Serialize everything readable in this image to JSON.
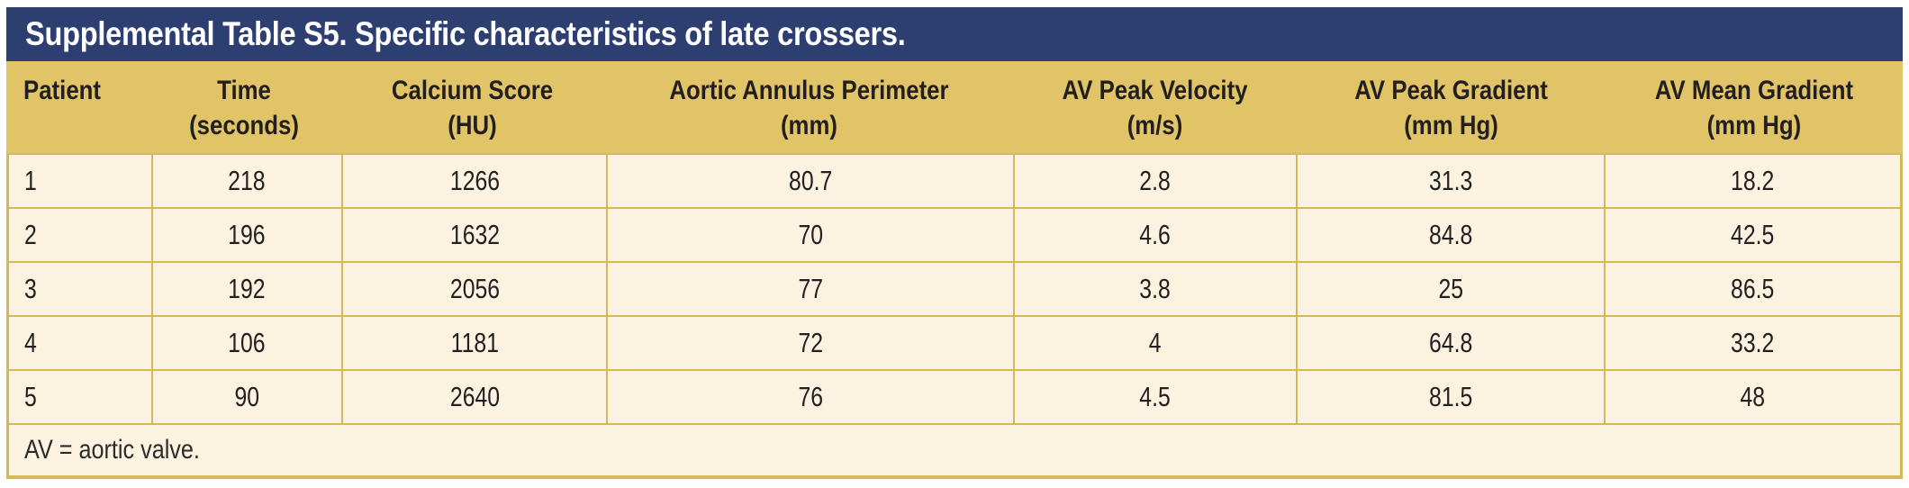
{
  "table": {
    "title": "Supplemental Table S5. Specific characteristics of late crossers.",
    "columns": [
      {
        "label": "Patient",
        "unit": ""
      },
      {
        "label": "Time",
        "unit": "(seconds)"
      },
      {
        "label": "Calcium Score",
        "unit": "(HU)"
      },
      {
        "label": "Aortic Annulus Perimeter",
        "unit": "(mm)"
      },
      {
        "label": "AV Peak Velocity",
        "unit": "(m/s)"
      },
      {
        "label": "AV Peak Gradient",
        "unit": "(mm Hg)"
      },
      {
        "label": "AV Mean Gradient",
        "unit": "(mm Hg)"
      }
    ],
    "rows": [
      [
        "1",
        "218",
        "1266",
        "80.7",
        "2.8",
        "31.3",
        "18.2"
      ],
      [
        "2",
        "196",
        "1632",
        "70",
        "4.6",
        "84.8",
        "42.5"
      ],
      [
        "3",
        "192",
        "2056",
        "77",
        "3.8",
        "25",
        "86.5"
      ],
      [
        "4",
        "106",
        "1181",
        "72",
        "4",
        "64.8",
        "33.2"
      ],
      [
        "5",
        "90",
        "2640",
        "76",
        "4.5",
        "81.5",
        "48"
      ]
    ],
    "footnote": "AV = aortic valve.",
    "colors": {
      "title_bar_bg": "#2d3e71",
      "title_text": "#ffffff",
      "header_bg": "#e0c467",
      "row_bg": "#fbf2e0",
      "border": "#d5b957",
      "body_text": "#231f20"
    }
  }
}
